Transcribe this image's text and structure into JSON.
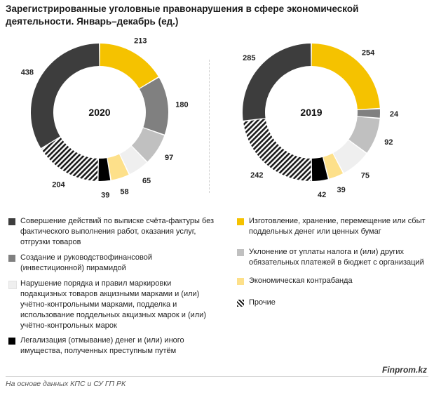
{
  "title": "Зарегистрированные уголовные правонарушения в сфере экономической деятельности. Январь–декабрь (ед.)",
  "source": "На основе данных КПС и СУ ГП РК",
  "brand": "Finprom.kz",
  "colors": {
    "fake_invoices": "#3d3d3d",
    "counterfeit": "#f5c200",
    "pyramid": "#808080",
    "tax_evasion": "#c0c0c0",
    "excise": "#efefef",
    "contraband": "#fde08a",
    "laundering": "#000000",
    "other": "hatch"
  },
  "legend": [
    {
      "key": "fake_invoices",
      "label": "Совершение действий по выписке счёта-фактуры без фактического выполнения работ, оказания услуг, отгрузки товаров",
      "lines": [
        "Совершение действий по выписке счёта-фактуры без",
        "фактического выполнения работ, оказания услуг,",
        "отгрузки товаров"
      ]
    },
    {
      "key": "pyramid",
      "label": "Создание и руководствофинансовой (инвестиционной) пирамидой",
      "lines": [
        "Создание и руководствофинансовой",
        "(инвестиционной) пирамидой"
      ]
    },
    {
      "key": "excise",
      "label": "Нарушение порядка и правил маркировки подакцизных товаров акцизными марками и (или) учётно-контрольными марками, подделка и использование поддельных акцизных марок и (или) учётно-контрольных марок",
      "lines": [
        "Нарушение порядка и правил маркировки",
        "подакцизных товаров акцизными марками и (или)",
        "учётно-контрольными марками, подделка и",
        "использование поддельных акцизных марок и (или)",
        "учётно-контрольных марок"
      ]
    },
    {
      "key": "laundering",
      "label": "Легализация (отмывание) денег и (или) иного имущества, полученных преступным путём",
      "lines": [
        "Легализация (отмывание) денег и (или) иного",
        "имущества, полученных преступным путём"
      ]
    },
    {
      "key": "counterfeit",
      "label": "Изготовление, хранение, перемещение или сбыт поддельных денег или ценных бумаг",
      "lines": [
        "Изготовление, хранение, перемещение или сбыт",
        "поддельных денег или ценных бумаг"
      ]
    },
    {
      "key": "tax_evasion",
      "label": "Уклонение от уплаты налога и (или) других обязательных платежей в бюджет с организаций",
      "lines": [
        "Уклонение от уплаты налога и (или) других",
        "обязательных платежей в бюджет с организаций"
      ]
    },
    {
      "key": "contraband",
      "label": "Экономическая контрабанда",
      "lines": [
        "Экономическая контрабанда"
      ]
    },
    {
      "key": "other",
      "label": "Прочие",
      "lines": [
        "Прочие"
      ]
    }
  ],
  "chart_data": [
    {
      "type": "pie",
      "title": "2020",
      "order": [
        "counterfeit",
        "pyramid",
        "tax_evasion",
        "excise",
        "contraband",
        "laundering",
        "other",
        "fake_invoices"
      ],
      "values": [
        213,
        180,
        97,
        65,
        58,
        39,
        204,
        438
      ]
    },
    {
      "type": "pie",
      "title": "2019",
      "order": [
        "counterfeit",
        "pyramid",
        "tax_evasion",
        "excise",
        "contraband",
        "laundering",
        "other",
        "fake_invoices"
      ],
      "values": [
        254,
        24,
        92,
        75,
        39,
        42,
        242,
        285
      ]
    }
  ]
}
